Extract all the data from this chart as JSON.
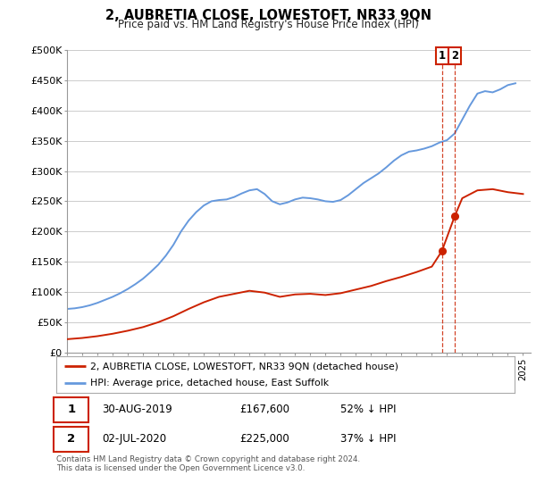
{
  "title": "2, AUBRETIA CLOSE, LOWESTOFT, NR33 9QN",
  "subtitle": "Price paid vs. HM Land Registry's House Price Index (HPI)",
  "ylabel_ticks": [
    "£0",
    "£50K",
    "£100K",
    "£150K",
    "£200K",
    "£250K",
    "£300K",
    "£350K",
    "£400K",
    "£450K",
    "£500K"
  ],
  "ytick_values": [
    0,
    50000,
    100000,
    150000,
    200000,
    250000,
    300000,
    350000,
    400000,
    450000,
    500000
  ],
  "ylim": [
    0,
    500000
  ],
  "xlim_start": 1995.0,
  "xlim_end": 2025.5,
  "hpi_color": "#6699dd",
  "price_color": "#cc2200",
  "transaction1": {
    "date": "30-AUG-2019",
    "price": 167600,
    "x": 2019.66,
    "pct": "52% ↓ HPI"
  },
  "transaction2": {
    "date": "02-JUL-2020",
    "price": 225000,
    "x": 2020.5,
    "pct": "37% ↓ HPI"
  },
  "legend_label1": "2, AUBRETIA CLOSE, LOWESTOFT, NR33 9QN (detached house)",
  "legend_label2": "HPI: Average price, detached house, East Suffolk",
  "footer": "Contains HM Land Registry data © Crown copyright and database right 2024.\nThis data is licensed under the Open Government Licence v3.0.",
  "background_color": "#ffffff",
  "grid_color": "#cccccc",
  "years_hpi": [
    1995.0,
    1995.5,
    1996.0,
    1996.5,
    1997.0,
    1997.5,
    1998.0,
    1998.5,
    1999.0,
    1999.5,
    2000.0,
    2000.5,
    2001.0,
    2001.5,
    2002.0,
    2002.5,
    2003.0,
    2003.5,
    2004.0,
    2004.5,
    2005.0,
    2005.5,
    2006.0,
    2006.5,
    2007.0,
    2007.5,
    2008.0,
    2008.5,
    2009.0,
    2009.5,
    2010.0,
    2010.5,
    2011.0,
    2011.5,
    2012.0,
    2012.5,
    2013.0,
    2013.5,
    2014.0,
    2014.5,
    2015.0,
    2015.5,
    2016.0,
    2016.5,
    2017.0,
    2017.5,
    2018.0,
    2018.5,
    2019.0,
    2019.5,
    2020.0,
    2020.5,
    2021.0,
    2021.5,
    2022.0,
    2022.5,
    2023.0,
    2023.5,
    2024.0,
    2024.5
  ],
  "hpi_values": [
    72000,
    73000,
    75000,
    78000,
    82000,
    87000,
    92000,
    98000,
    105000,
    113000,
    122000,
    133000,
    145000,
    160000,
    178000,
    200000,
    218000,
    232000,
    243000,
    250000,
    252000,
    253000,
    257000,
    263000,
    268000,
    270000,
    262000,
    250000,
    245000,
    248000,
    253000,
    256000,
    255000,
    253000,
    250000,
    249000,
    252000,
    260000,
    270000,
    280000,
    288000,
    296000,
    306000,
    317000,
    326000,
    332000,
    334000,
    337000,
    341000,
    347000,
    351000,
    362000,
    385000,
    408000,
    428000,
    432000,
    430000,
    435000,
    442000,
    445000
  ],
  "years_price": [
    1995.0,
    1996.0,
    1997.0,
    1998.0,
    1999.0,
    2000.0,
    2001.0,
    2002.0,
    2003.0,
    2004.0,
    2005.0,
    2006.0,
    2007.0,
    2008.0,
    2009.0,
    2010.0,
    2011.0,
    2012.0,
    2013.0,
    2014.0,
    2015.0,
    2016.0,
    2017.0,
    2018.0,
    2019.0,
    2019.66,
    2020.5,
    2021.0,
    2022.0,
    2023.0,
    2024.0,
    2025.0
  ],
  "price_values": [
    22000,
    24000,
    27000,
    31000,
    36000,
    42000,
    50000,
    60000,
    72000,
    83000,
    92000,
    97000,
    102000,
    99000,
    92000,
    96000,
    97000,
    95000,
    98000,
    104000,
    110000,
    118000,
    125000,
    133000,
    142000,
    167600,
    225000,
    255000,
    268000,
    270000,
    265000,
    262000
  ]
}
